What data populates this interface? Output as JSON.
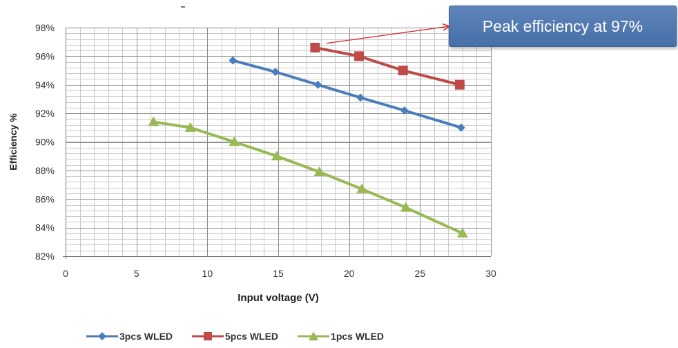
{
  "chart_data": {
    "type": "line",
    "title": "",
    "xlabel": "Input voltage (V)",
    "ylabel": "Efficiency %",
    "xlim": [
      0,
      30
    ],
    "ylim": [
      82,
      98
    ],
    "xticks": [
      0,
      5,
      10,
      15,
      20,
      25,
      30
    ],
    "yticks": [
      82,
      84,
      86,
      88,
      90,
      92,
      94,
      96,
      98
    ],
    "ytick_labels": [
      "82%",
      "84%",
      "86%",
      "88%",
      "90%",
      "92%",
      "94%",
      "96%",
      "98%"
    ],
    "grid": true,
    "legend_position": "bottom",
    "series": [
      {
        "name": "3pcs WLED",
        "color": "#4a7ebb",
        "marker": "diamond",
        "x": [
          11.8,
          14.8,
          17.8,
          20.8,
          23.9,
          27.9
        ],
        "y": [
          95.7,
          94.9,
          94.0,
          93.1,
          92.2,
          91.0
        ]
      },
      {
        "name": "5pcs WLED",
        "color": "#be4b48",
        "marker": "square",
        "x": [
          17.6,
          20.7,
          23.8,
          27.8
        ],
        "y": [
          96.6,
          96.0,
          95.0,
          94.0
        ]
      },
      {
        "name": "1pcs WLED",
        "color": "#98b954",
        "marker": "triangle",
        "x": [
          6.2,
          8.8,
          11.9,
          14.9,
          17.9,
          20.9,
          24.0,
          28.0
        ],
        "y": [
          91.4,
          91.0,
          90.0,
          89.0,
          87.9,
          86.7,
          85.4,
          83.6
        ]
      }
    ],
    "annotations": [
      {
        "text": "Peak efficiency at 97%",
        "points_to": {
          "x": 18.2,
          "y": 97.0
        },
        "color": "#4a72aa"
      }
    ]
  }
}
